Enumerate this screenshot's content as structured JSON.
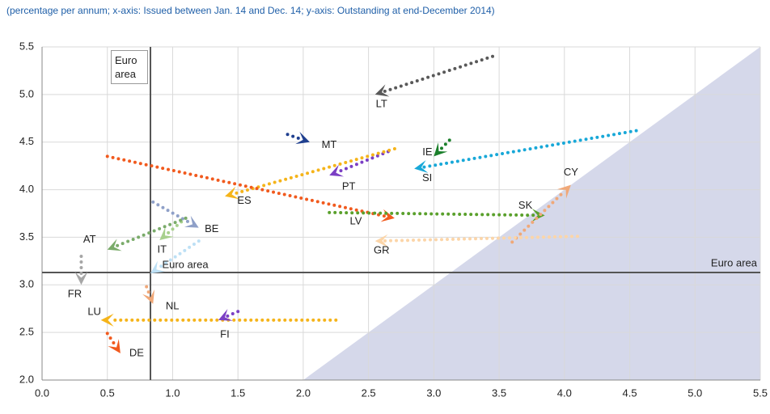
{
  "chart_data": {
    "type": "arrow",
    "subtitle": "(percentage per annum; x-axis: Issued between Jan. 14 and Dec. 14; y-axis: Outstanding at end-December 2014)",
    "xlim": [
      0,
      5.5
    ],
    "ylim": [
      2,
      5.5
    ],
    "xticks": [
      {
        "value": 0,
        "label": "0.0"
      },
      {
        "value": 0.5,
        "label": "0.5"
      },
      {
        "value": 1,
        "label": "1.0"
      },
      {
        "value": 1.5,
        "label": "1.5"
      },
      {
        "value": 2,
        "label": "2.0"
      },
      {
        "value": 2.5,
        "label": "2.5"
      },
      {
        "value": 3,
        "label": "3.0"
      },
      {
        "value": 3.5,
        "label": "3.5"
      },
      {
        "value": 4,
        "label": "4.0"
      },
      {
        "value": 4.5,
        "label": "4.5"
      },
      {
        "value": 5,
        "label": "5.0"
      },
      {
        "value": 5.5,
        "label": "5.5"
      }
    ],
    "yticks": [
      {
        "value": 2,
        "label": "2.0"
      },
      {
        "value": 2.5,
        "label": "2.5"
      },
      {
        "value": 3,
        "label": "3.0"
      },
      {
        "value": 3.5,
        "label": "3.5"
      },
      {
        "value": 4,
        "label": "4.0"
      },
      {
        "value": 4.5,
        "label": "4.5"
      },
      {
        "value": 5,
        "label": "5.0"
      },
      {
        "value": 5.5,
        "label": "5.5"
      }
    ],
    "grid": true,
    "reference_lines": {
      "x": 0.83,
      "y": 3.13,
      "label": "Euro area"
    },
    "series": [
      {
        "name": "LT",
        "color": "#595959",
        "x": [
          3.45,
          2.55
        ],
        "y": [
          5.4,
          5.0
        ]
      },
      {
        "name": "MT",
        "color": "#1f3f8f",
        "x": [
          1.88,
          2.05
        ],
        "y": [
          4.58,
          4.5
        ]
      },
      {
        "name": "IE",
        "color": "#1a7f2a",
        "x": [
          3.12,
          3.0
        ],
        "y": [
          4.52,
          4.35
        ]
      },
      {
        "name": "SI",
        "color": "#18a8d8",
        "x": [
          4.55,
          2.85
        ],
        "y": [
          4.62,
          4.22
        ]
      },
      {
        "name": "PT",
        "color": "#7b3fc4",
        "x": [
          2.65,
          2.2
        ],
        "y": [
          4.4,
          4.15
        ]
      },
      {
        "name": "ES",
        "color": "#f5b41a",
        "x": [
          2.7,
          1.4
        ],
        "y": [
          4.43,
          3.93
        ]
      },
      {
        "name": "LV",
        "color": "#f15a1e",
        "x": [
          0.5,
          2.7
        ],
        "y": [
          4.35,
          3.7
        ]
      },
      {
        "name": "SK",
        "color": "#5aa02c",
        "x": [
          2.2,
          3.85
        ],
        "y": [
          3.76,
          3.73
        ]
      },
      {
        "name": "CY",
        "color": "#f0a878",
        "x": [
          3.6,
          4.05
        ],
        "y": [
          3.45,
          4.05
        ]
      },
      {
        "name": "GR",
        "color": "#fcd5a8",
        "x": [
          4.1,
          2.55
        ],
        "y": [
          3.51,
          3.46
        ]
      },
      {
        "name": "BE",
        "color": "#8fa0c8",
        "x": [
          0.85,
          1.2
        ],
        "y": [
          3.87,
          3.6
        ]
      },
      {
        "name": "IT",
        "color": "#a8d08d",
        "x": [
          1.1,
          0.9
        ],
        "y": [
          3.7,
          3.47
        ]
      },
      {
        "name": "AT",
        "color": "#7aab6a",
        "x": [
          1.1,
          0.5
        ],
        "y": [
          3.7,
          3.37
        ]
      },
      {
        "name": "Euro area",
        "color": "#bde0f5",
        "x": [
          1.2,
          0.83
        ],
        "y": [
          3.46,
          3.12
        ]
      },
      {
        "name": "FR",
        "color": "#a6a6a6",
        "x": [
          0.3,
          0.3
        ],
        "y": [
          3.3,
          3.0
        ]
      },
      {
        "name": "NL",
        "color": "#f0a878",
        "x": [
          0.8,
          0.85
        ],
        "y": [
          2.98,
          2.8
        ]
      },
      {
        "name": "LU",
        "color": "#f5b41a",
        "x": [
          2.25,
          0.45
        ],
        "y": [
          2.63,
          2.63
        ]
      },
      {
        "name": "FI",
        "color": "#7b3fc4",
        "x": [
          1.5,
          1.35
        ],
        "y": [
          2.72,
          2.63
        ]
      },
      {
        "name": "DE",
        "color": "#f15a1e",
        "x": [
          0.5,
          0.6
        ],
        "y": [
          2.49,
          2.28
        ]
      }
    ]
  }
}
